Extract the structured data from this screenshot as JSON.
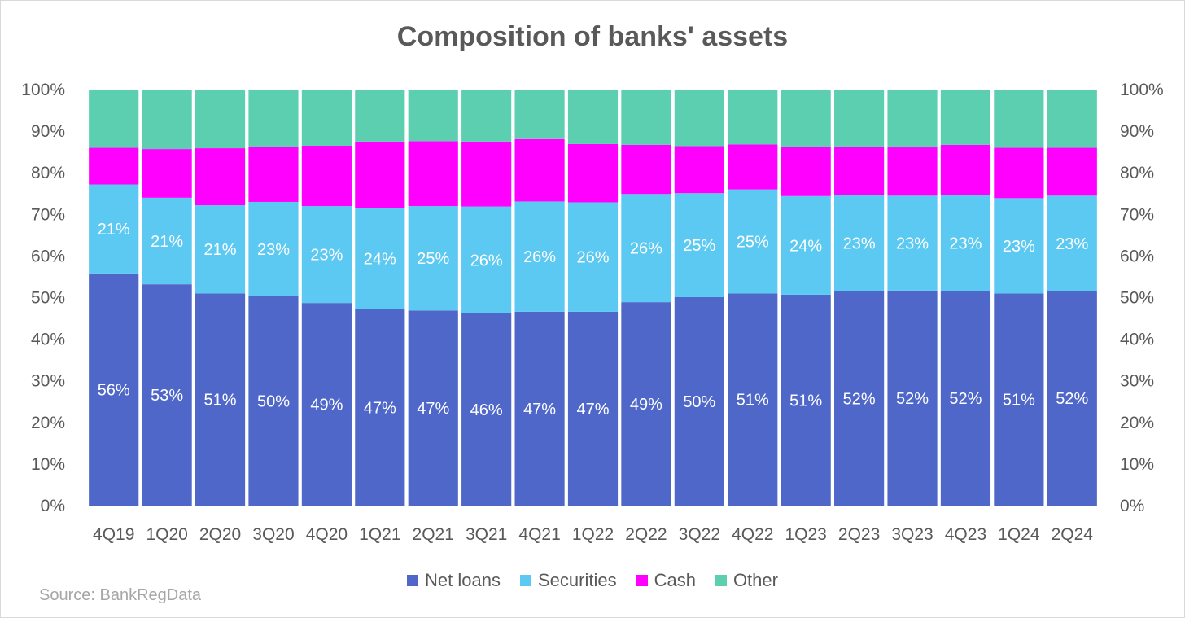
{
  "chart_data": {
    "type": "bar",
    "stacked": true,
    "title": "Composition of banks' assets",
    "source": "Source: BankRegData",
    "categories": [
      "4Q19",
      "1Q20",
      "2Q20",
      "3Q20",
      "4Q20",
      "1Q21",
      "2Q21",
      "3Q21",
      "4Q21",
      "1Q22",
      "2Q22",
      "3Q22",
      "4Q22",
      "1Q23",
      "2Q23",
      "3Q23",
      "4Q23",
      "1Q24",
      "2Q24"
    ],
    "ylim": [
      0,
      100
    ],
    "yticks": [
      "0%",
      "10%",
      "20%",
      "30%",
      "40%",
      "50%",
      "60%",
      "70%",
      "80%",
      "90%",
      "100%"
    ],
    "secondary_axis": true,
    "grid": false,
    "legend_position": "bottom",
    "series": [
      {
        "name": "Net loans",
        "color": "#4e67c8",
        "values": [
          55.8,
          53.2,
          51.0,
          50.3,
          48.7,
          47.2,
          46.9,
          46.2,
          46.6,
          46.6,
          48.9,
          50.1,
          51.0,
          50.7,
          51.5,
          51.7,
          51.6,
          51.0,
          51.6
        ],
        "labels": [
          "56%",
          "53%",
          "51%",
          "50%",
          "49%",
          "47%",
          "47%",
          "46%",
          "47%",
          "47%",
          "49%",
          "50%",
          "51%",
          "51%",
          "52%",
          "52%",
          "52%",
          "51%",
          "52%"
        ]
      },
      {
        "name": "Securities",
        "color": "#5bc9f1",
        "values": [
          21.4,
          20.8,
          21.2,
          22.7,
          23.3,
          24.3,
          25.1,
          25.7,
          26.5,
          26.3,
          26.0,
          25.0,
          25.0,
          23.7,
          23.2,
          22.8,
          23.1,
          22.9,
          22.9
        ],
        "labels": [
          "21%",
          "21%",
          "21%",
          "23%",
          "23%",
          "24%",
          "25%",
          "26%",
          "26%",
          "26%",
          "26%",
          "25%",
          "25%",
          "24%",
          "23%",
          "23%",
          "23%",
          "23%",
          "23%"
        ]
      },
      {
        "name": "Cash",
        "color": "#ff00ff",
        "values": [
          8.8,
          11.7,
          13.7,
          13.2,
          14.5,
          16.0,
          15.6,
          15.6,
          15.0,
          14.0,
          11.8,
          11.3,
          10.8,
          11.9,
          11.5,
          11.6,
          12.0,
          12.1,
          11.5
        ]
      },
      {
        "name": "Other",
        "color": "#5dcfb1",
        "values": [
          14.0,
          14.3,
          14.1,
          13.8,
          13.5,
          12.5,
          12.4,
          12.5,
          11.9,
          13.1,
          13.3,
          13.6,
          13.2,
          13.7,
          13.8,
          13.9,
          13.3,
          14.0,
          14.0
        ]
      }
    ]
  }
}
